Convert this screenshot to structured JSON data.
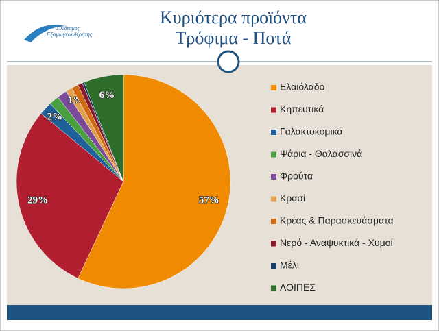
{
  "logo": [
    "Σύνδεσμος",
    "ΕξαγωγέωνΚρήτης"
  ],
  "chart_data": {
    "type": "pie",
    "title": [
      "Κυριότερα προϊόντα",
      "Τρόφιμα - Ποτά"
    ],
    "categories": [
      "Ελαιόλαδο",
      "Κηπευτικά",
      "Γαλακτοκομικά",
      "Ψάρια - Θαλασσινά",
      "Φρούτα",
      "Κρασί",
      "Κρέας & Παρασκευάσματα",
      "Νερό - Αναψυκτικά - Χυμοί",
      "Μέλι",
      "ΛΟΙΠΕΣ"
    ],
    "values": [
      57,
      29,
      2,
      1.5,
      1.5,
      1,
      1,
      0.7,
      0.3,
      6
    ],
    "value_labels": [
      "57%",
      "29%",
      "2%",
      null,
      null,
      "1%",
      null,
      null,
      null,
      "6%"
    ],
    "colors": [
      "#f08a00",
      "#b01e2f",
      "#1f5f9a",
      "#4aa040",
      "#7b4a9a",
      "#e0a050",
      "#d06a10",
      "#8a1a2a",
      "#1a3a6a",
      "#2f6e2a"
    ],
    "legend": "right"
  }
}
